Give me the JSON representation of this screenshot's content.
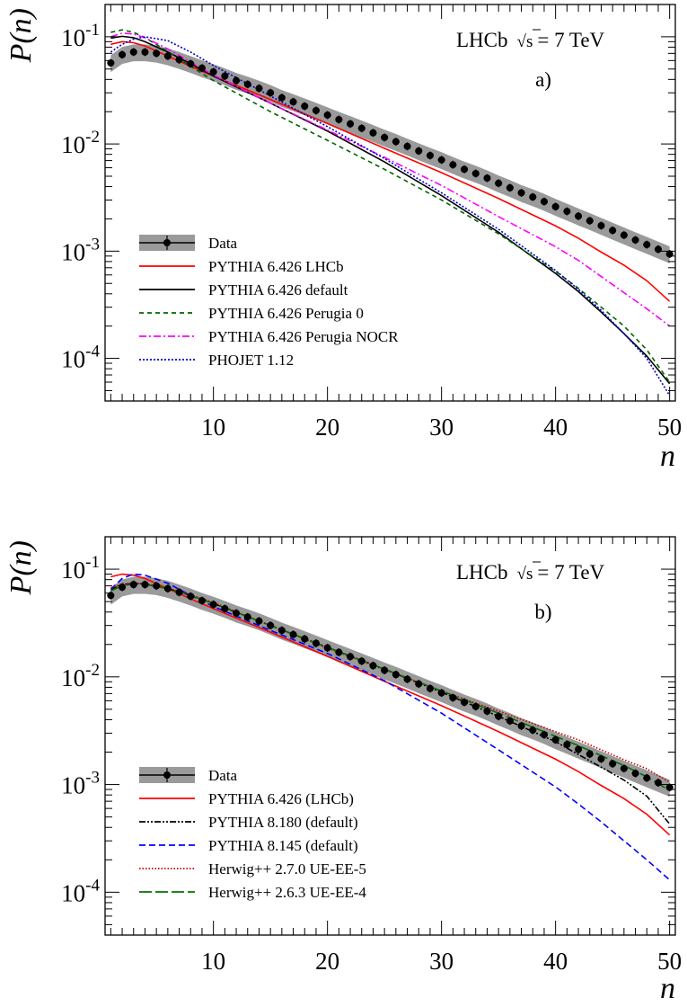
{
  "chart_data": [
    {
      "type": "line",
      "panel_label": "a)",
      "annotation": "LHCb",
      "annotation_energy": "= 7 TeV",
      "sqrt_symbol": "√",
      "sqrt_var": "s",
      "xlabel": "n",
      "ylabel": "P(n)",
      "yscale": "log",
      "xlim": [
        0.5,
        50.5
      ],
      "ylim": [
        4e-05,
        0.2
      ],
      "xticks": [
        10,
        20,
        30,
        40,
        50
      ],
      "yticks": [
        {
          "value": 0.1,
          "base": "10",
          "exp": "-1"
        },
        {
          "value": 0.01,
          "base": "10",
          "exp": "-2"
        },
        {
          "value": 0.001,
          "base": "10",
          "exp": "-3"
        },
        {
          "value": 0.0001,
          "base": "10",
          "exp": "-4"
        }
      ],
      "legend_position": "bottom-left",
      "data": {
        "name": "Data",
        "x": [
          1,
          2,
          3,
          4,
          5,
          6,
          7,
          8,
          9,
          10,
          11,
          12,
          13,
          14,
          15,
          16,
          17,
          18,
          19,
          20,
          21,
          22,
          23,
          24,
          25,
          26,
          27,
          28,
          29,
          30,
          31,
          32,
          33,
          34,
          35,
          36,
          37,
          38,
          39,
          40,
          41,
          42,
          43,
          44,
          45,
          46,
          47,
          48,
          49,
          50
        ],
        "y": [
          0.057,
          0.068,
          0.072,
          0.072,
          0.07,
          0.066,
          0.061,
          0.056,
          0.051,
          0.047,
          0.043,
          0.039,
          0.036,
          0.033,
          0.03,
          0.027,
          0.0247,
          0.0225,
          0.0205,
          0.0186,
          0.0169,
          0.0154,
          0.014,
          0.0127,
          0.0115,
          0.0105,
          0.0095,
          0.0086,
          0.0078,
          0.0071,
          0.0064,
          0.0058,
          0.0053,
          0.0048,
          0.0043,
          0.0039,
          0.0035,
          0.0032,
          0.0029,
          0.0026,
          0.00235,
          0.00212,
          0.00192,
          0.00173,
          0.00156,
          0.00141,
          0.00127,
          0.00115,
          0.00104,
          0.00094
        ],
        "band_low_factor": 0.82,
        "band_high_factor": 1.18,
        "color": "#000000",
        "band_color": "#9a9a9a"
      },
      "series": [
        {
          "name": "PYTHIA 6.426 LHCb",
          "color": "#ff0000",
          "dash": "solid",
          "x": [
            1,
            2,
            3,
            4,
            6,
            8,
            10,
            15,
            20,
            25,
            30,
            35,
            40,
            42,
            44,
            46,
            48,
            50
          ],
          "y": [
            0.085,
            0.09,
            0.088,
            0.082,
            0.066,
            0.053,
            0.043,
            0.026,
            0.0155,
            0.0091,
            0.0054,
            0.0031,
            0.00172,
            0.00132,
            0.00098,
            0.00074,
            0.00053,
            0.00034
          ]
        },
        {
          "name": "PYTHIA 6.426 default",
          "color": "#000000",
          "dash": "solid",
          "x": [
            1,
            2,
            3,
            4,
            6,
            8,
            10,
            15,
            20,
            25,
            30,
            35,
            40,
            42,
            44,
            46,
            48,
            50
          ],
          "y": [
            0.097,
            0.101,
            0.098,
            0.09,
            0.072,
            0.056,
            0.043,
            0.024,
            0.0132,
            0.0068,
            0.0033,
            0.0015,
            0.00062,
            0.00042,
            0.00027,
            0.00017,
            0.000105,
            5.8e-05
          ]
        },
        {
          "name": "PYTHIA 6.426 Perugia 0",
          "color": "#006400",
          "dash": "5,4",
          "x": [
            1,
            2,
            3,
            4,
            6,
            8,
            10,
            15,
            20,
            25,
            30,
            35,
            40,
            42,
            44,
            46,
            48,
            50
          ],
          "y": [
            0.11,
            0.116,
            0.11,
            0.098,
            0.073,
            0.053,
            0.039,
            0.02,
            0.0108,
            0.0058,
            0.003,
            0.00145,
            0.00065,
            0.00045,
            0.0003,
            0.0002,
            0.00012,
            6e-05
          ]
        },
        {
          "name": "PYTHIA 6.426 Perugia NOCR",
          "color": "#ff00ff",
          "dash": "8,3,2,3",
          "x": [
            1,
            2,
            3,
            4,
            6,
            8,
            10,
            15,
            20,
            25,
            30,
            35,
            40,
            42,
            44,
            46,
            48,
            50
          ],
          "y": [
            0.1,
            0.108,
            0.106,
            0.098,
            0.077,
            0.058,
            0.044,
            0.024,
            0.0135,
            0.0075,
            0.0041,
            0.0021,
            0.0011,
            0.00082,
            0.00058,
            0.00041,
            0.00029,
            0.0002
          ]
        },
        {
          "name": "PHOJET 1.12",
          "color": "#0000cc",
          "dash": "2,2",
          "x": [
            1,
            2,
            3,
            4,
            6,
            8,
            10,
            15,
            20,
            25,
            30,
            35,
            40,
            42,
            44,
            46,
            48,
            50
          ],
          "y": [
            0.072,
            0.085,
            0.095,
            0.1,
            0.092,
            0.072,
            0.054,
            0.028,
            0.0145,
            0.0073,
            0.0035,
            0.0016,
            0.00066,
            0.00044,
            0.00028,
            0.00017,
            0.0001,
            4.5e-05
          ]
        }
      ]
    },
    {
      "type": "line",
      "panel_label": "b)",
      "annotation": "LHCb",
      "annotation_energy": "= 7 TeV",
      "sqrt_symbol": "√",
      "sqrt_var": "s",
      "xlabel": "n",
      "ylabel": "P(n)",
      "yscale": "log",
      "xlim": [
        0.5,
        50.5
      ],
      "ylim": [
        4e-05,
        0.2
      ],
      "xticks": [
        10,
        20,
        30,
        40,
        50
      ],
      "yticks": [
        {
          "value": 0.1,
          "base": "10",
          "exp": "-1"
        },
        {
          "value": 0.01,
          "base": "10",
          "exp": "-2"
        },
        {
          "value": 0.001,
          "base": "10",
          "exp": "-3"
        },
        {
          "value": 0.0001,
          "base": "10",
          "exp": "-4"
        }
      ],
      "legend_position": "bottom-left",
      "data": {
        "name": "Data",
        "x": [
          1,
          2,
          3,
          4,
          5,
          6,
          7,
          8,
          9,
          10,
          11,
          12,
          13,
          14,
          15,
          16,
          17,
          18,
          19,
          20,
          21,
          22,
          23,
          24,
          25,
          26,
          27,
          28,
          29,
          30,
          31,
          32,
          33,
          34,
          35,
          36,
          37,
          38,
          39,
          40,
          41,
          42,
          43,
          44,
          45,
          46,
          47,
          48,
          49,
          50
        ],
        "y": [
          0.057,
          0.068,
          0.072,
          0.072,
          0.07,
          0.066,
          0.061,
          0.056,
          0.051,
          0.047,
          0.043,
          0.039,
          0.036,
          0.033,
          0.03,
          0.027,
          0.0247,
          0.0225,
          0.0205,
          0.0186,
          0.0169,
          0.0154,
          0.014,
          0.0127,
          0.0115,
          0.0105,
          0.0095,
          0.0086,
          0.0078,
          0.0071,
          0.0064,
          0.0058,
          0.0053,
          0.0048,
          0.0043,
          0.0039,
          0.0035,
          0.0032,
          0.0029,
          0.0026,
          0.00235,
          0.00212,
          0.00192,
          0.00173,
          0.00156,
          0.00141,
          0.00127,
          0.00115,
          0.00104,
          0.00094
        ],
        "band_low_factor": 0.82,
        "band_high_factor": 1.18,
        "color": "#000000",
        "band_color": "#9a9a9a"
      },
      "series": [
        {
          "name": "PYTHIA 6.426 (LHCb)",
          "color": "#ff0000",
          "dash": "solid",
          "x": [
            1,
            2,
            3,
            4,
            6,
            8,
            10,
            15,
            20,
            25,
            30,
            35,
            40,
            42,
            44,
            46,
            48,
            50
          ],
          "y": [
            0.085,
            0.09,
            0.088,
            0.082,
            0.066,
            0.053,
            0.043,
            0.026,
            0.0155,
            0.0091,
            0.0054,
            0.0031,
            0.00172,
            0.00132,
            0.00098,
            0.00074,
            0.00053,
            0.00034
          ]
        },
        {
          "name": "PYTHIA 8.180 (default)",
          "color": "#000000",
          "dash": "7,2,2,2,2,2",
          "x": [
            1,
            2,
            3,
            4,
            6,
            8,
            10,
            15,
            20,
            25,
            30,
            35,
            40,
            42,
            44,
            46,
            48,
            50
          ],
          "y": [
            0.065,
            0.072,
            0.074,
            0.073,
            0.066,
            0.057,
            0.048,
            0.03,
            0.0188,
            0.0118,
            0.0072,
            0.0043,
            0.0025,
            0.0019,
            0.00145,
            0.0011,
            0.00078,
            0.00043
          ]
        },
        {
          "name": "PYTHIA 8.145 (default)",
          "color": "#0000ff",
          "dash": "7,4",
          "x": [
            1,
            2,
            3,
            4,
            6,
            8,
            10,
            15,
            20,
            25,
            30,
            35,
            40,
            42,
            44,
            46,
            48,
            50
          ],
          "y": [
            0.065,
            0.082,
            0.09,
            0.088,
            0.074,
            0.057,
            0.045,
            0.027,
            0.0165,
            0.0092,
            0.0046,
            0.0021,
            0.00095,
            0.00066,
            0.00045,
            0.0003,
            0.0002,
            0.00013
          ]
        },
        {
          "name": "Herwig++ 2.7.0 UE-EE-5",
          "color": "#cc0000",
          "dash": "1.5,2",
          "x": [
            1,
            2,
            3,
            4,
            6,
            8,
            10,
            15,
            20,
            25,
            30,
            35,
            40,
            42,
            44,
            46,
            48,
            50
          ],
          "y": [
            0.067,
            0.073,
            0.074,
            0.073,
            0.067,
            0.058,
            0.049,
            0.03,
            0.0185,
            0.0116,
            0.0074,
            0.0048,
            0.0031,
            0.0026,
            0.0021,
            0.0017,
            0.0014,
            0.00105
          ]
        },
        {
          "name": "Herwig++ 2.6.3 UE-EE-4",
          "color": "#007000",
          "dash": "14,4",
          "x": [
            1,
            2,
            3,
            4,
            6,
            8,
            10,
            15,
            20,
            25,
            30,
            35,
            40,
            42,
            44,
            46,
            48,
            50
          ],
          "y": [
            0.063,
            0.07,
            0.073,
            0.072,
            0.066,
            0.057,
            0.048,
            0.03,
            0.0188,
            0.0118,
            0.0074,
            0.0046,
            0.0028,
            0.0023,
            0.00185,
            0.0015,
            0.00118,
            0.00088
          ]
        }
      ]
    }
  ]
}
